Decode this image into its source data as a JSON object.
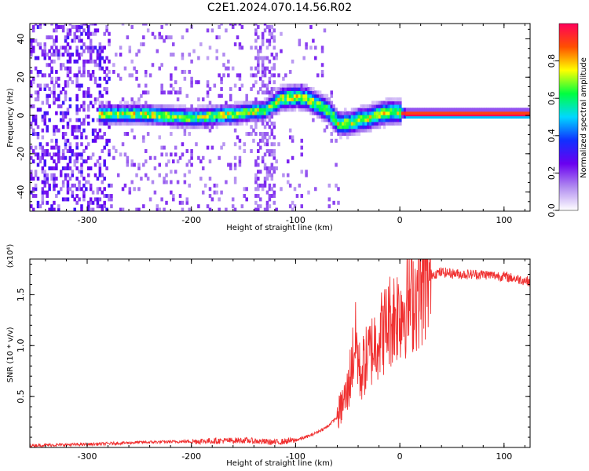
{
  "title": "C2E1.2024.070.14.56.R02",
  "chart_data": [
    {
      "type": "heatmap",
      "xlabel": "Height of straight line (km)",
      "ylabel": "Frequency (Hz)",
      "xlim": [
        -355,
        125
      ],
      "ylim": [
        -50,
        48
      ],
      "xticks": [
        -300,
        -200,
        -100,
        0,
        100
      ],
      "xtick_labels": [
        "-300",
        "-200",
        "-100",
        "0",
        "100"
      ],
      "yticks": [
        -40,
        -20,
        0,
        20,
        40
      ],
      "ytick_labels": [
        "-40",
        "-20",
        "0",
        "20",
        "40"
      ],
      "colormap": [
        "#ffffff",
        "#b18cf0",
        "#6a00f0",
        "#1030ff",
        "#00d8ff",
        "#00ff40",
        "#ffff00",
        "#ff5000",
        "#ff005a"
      ],
      "ridge_frequency": {
        "x": [
          -285,
          -250,
          -200,
          -160,
          -130,
          -115,
          -100,
          -90,
          -80,
          -70,
          -60,
          -50,
          -40,
          -30,
          -20,
          -10,
          0,
          5,
          50,
          125
        ],
        "y": [
          0,
          0,
          -2,
          0,
          2,
          8,
          9,
          8,
          5,
          2,
          -5,
          -5,
          -3,
          -2,
          0,
          1,
          1,
          0,
          0,
          0
        ]
      },
      "colorbar": {
        "label": "Normalized spectral amplitude",
        "range": [
          0,
          1
        ],
        "ticks": [
          0.0,
          0.2,
          0.4,
          0.6,
          0.8
        ],
        "tick_labels": [
          "0.0",
          "0.2",
          "0.4",
          "0.6",
          "0.8"
        ]
      }
    },
    {
      "type": "line",
      "xlabel": "Height of straight line (km)",
      "ylabel": "SNR (10 * v/v)",
      "yscale_label": "(x10⁴)",
      "xlim": [
        -355,
        125
      ],
      "ylim": [
        0,
        1.85
      ],
      "xticks": [
        -300,
        -200,
        -100,
        0,
        100
      ],
      "xtick_labels": [
        "-300",
        "-200",
        "-100",
        "0",
        "100"
      ],
      "yticks": [
        0.5,
        1.0,
        1.5
      ],
      "ytick_labels": [
        "0.5",
        "1.0",
        "1.5"
      ],
      "series": [
        {
          "color": "#f03030",
          "x": [
            -355,
            -300,
            -250,
            -200,
            -150,
            -120,
            -100,
            -85,
            -70,
            -60,
            -50,
            -45,
            -42,
            -38,
            -35,
            -30,
            -25,
            -20,
            -15,
            -10,
            -5,
            0,
            10,
            20,
            30,
            40,
            60,
            80,
            100,
            110,
            125
          ],
          "y": [
            0.02,
            0.03,
            0.05,
            0.06,
            0.07,
            0.05,
            0.07,
            0.12,
            0.2,
            0.3,
            0.55,
            0.9,
            1.05,
            0.7,
            0.8,
            0.9,
            1.0,
            1.1,
            1.15,
            1.25,
            1.3,
            1.35,
            1.45,
            1.55,
            1.7,
            1.72,
            1.7,
            1.7,
            1.68,
            1.66,
            1.63
          ]
        }
      ]
    }
  ]
}
